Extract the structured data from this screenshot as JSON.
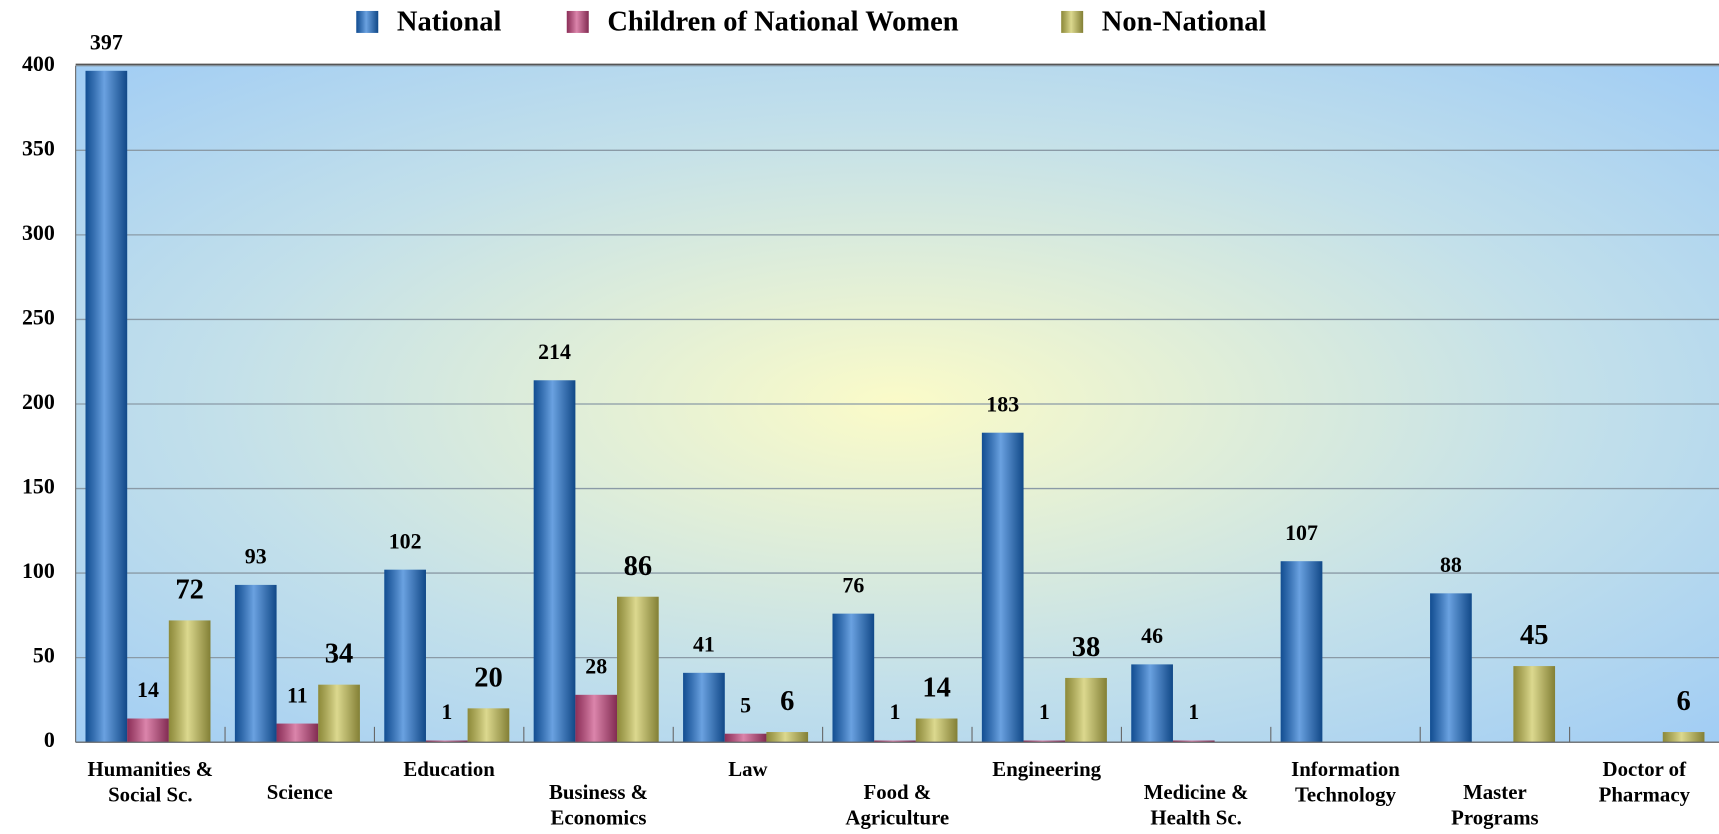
{
  "chart_data": {
    "type": "bar",
    "categories": [
      "Humanities & Social Sc.",
      "Science",
      "Education",
      "Business & Economics",
      "Law",
      "Food & Agriculture",
      "Engineering",
      "Medicine & Health Sc.",
      "Information Technology",
      "Master Programs",
      "Doctor of Pharmacy"
    ],
    "series": [
      {
        "name": "National",
        "color": "#1a6fd0",
        "values": [
          397,
          93,
          102,
          214,
          41,
          76,
          183,
          46,
          107,
          88,
          null
        ]
      },
      {
        "name": "Children of National Women",
        "color": "#c8437e",
        "values": [
          14,
          11,
          1,
          28,
          5,
          1,
          1,
          1,
          null,
          null,
          null
        ]
      },
      {
        "name": "Non-National",
        "color": "#c9c452",
        "values": [
          72,
          34,
          20,
          86,
          6,
          14,
          38,
          null,
          null,
          45,
          6
        ]
      }
    ],
    "ylim": [
      0,
      400
    ],
    "yticks": [
      0,
      50,
      100,
      150,
      200,
      250,
      300,
      350,
      400
    ],
    "grid": true,
    "legend": "top"
  }
}
